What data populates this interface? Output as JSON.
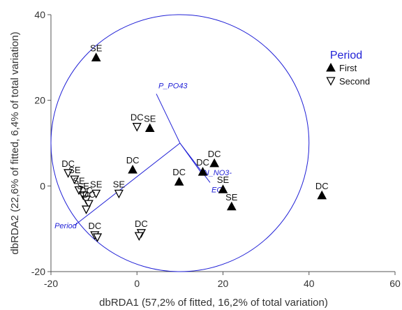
{
  "chart_data": {
    "type": "scatter",
    "xlabel": "dbRDA1 (57,2% of fitted, 16,2% of total variation)",
    "ylabel": "dbRDA2 (22,6% of fitted, 6,4% of total variation)",
    "xlim": [
      -20,
      60
    ],
    "ylim": [
      -20,
      40
    ],
    "x_ticks": [
      -20,
      0,
      20,
      40,
      60
    ],
    "y_ticks": [
      -20,
      0,
      20,
      40
    ],
    "grid": false,
    "legend": {
      "title": "Period",
      "position": "top-right",
      "entries": [
        {
          "label": "First",
          "marker": "triangle-up-filled"
        },
        {
          "label": "Second",
          "marker": "triangle-down-open"
        }
      ]
    },
    "series": [
      {
        "name": "First",
        "marker": "triangle-up-filled",
        "points": [
          {
            "x": -9.5,
            "y": 30,
            "label": "SE"
          },
          {
            "x": 3,
            "y": 13.5,
            "label": "SE"
          },
          {
            "x": -1,
            "y": 3.8,
            "label": "DC"
          },
          {
            "x": 9.8,
            "y": 1,
            "label": "DC"
          },
          {
            "x": 15.3,
            "y": 3.3,
            "label": "DC"
          },
          {
            "x": 18,
            "y": 5.3,
            "label": "DC"
          },
          {
            "x": 20,
            "y": -0.8,
            "label": "SE"
          },
          {
            "x": 22,
            "y": -4.8,
            "label": "SE"
          },
          {
            "x": 43,
            "y": -2.2,
            "label": "DC"
          }
        ]
      },
      {
        "name": "Second",
        "marker": "triangle-down-open",
        "points": [
          {
            "x": 0,
            "y": 13.8,
            "label": "DC"
          },
          {
            "x": -16,
            "y": 3,
            "label": "DC"
          },
          {
            "x": -14.5,
            "y": 1.5,
            "label": "SE"
          },
          {
            "x": -13.5,
            "y": -1,
            "label": "SE"
          },
          {
            "x": -12.5,
            "y": -2.2,
            "label": "SE"
          },
          {
            "x": -11.8,
            "y": -3.2,
            "label": "DC"
          },
          {
            "x": -11.2,
            "y": -4.2,
            "label": "DC"
          },
          {
            "x": -11.8,
            "y": -5.5,
            "label": ""
          },
          {
            "x": -9.5,
            "y": -1.8,
            "label": "SE"
          },
          {
            "x": -4.2,
            "y": -1.8,
            "label": "SE"
          },
          {
            "x": -9.8,
            "y": -11.5,
            "label": "DC"
          },
          {
            "x": -9.2,
            "y": -12,
            "label": ""
          },
          {
            "x": 1,
            "y": -11,
            "label": "DC"
          },
          {
            "x": 0.5,
            "y": -11.7,
            "label": ""
          }
        ]
      }
    ],
    "vectors": [
      {
        "label": "P_PO43",
        "x": 4.5,
        "y": 21.5
      },
      {
        "label": "N_NO3-",
        "x": 15,
        "y": 3
      },
      {
        "label": "EC",
        "x": 17,
        "y": 0.8
      },
      {
        "label": "Period",
        "x": -14.5,
        "y": -9.2
      }
    ],
    "circle": {
      "center_x": 10,
      "center_y": 10,
      "radius": 30
    }
  },
  "colors": {
    "vector": "#1f1fd6",
    "marker": "#000000",
    "axis": "#555555"
  }
}
